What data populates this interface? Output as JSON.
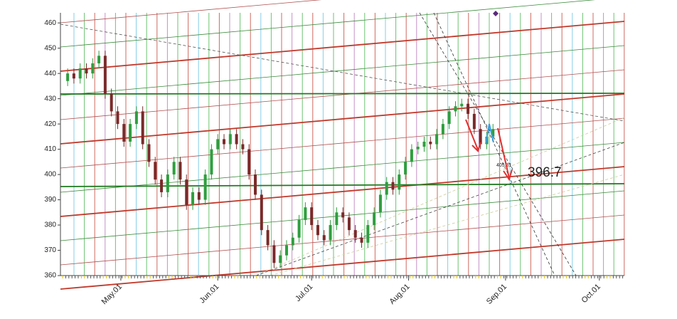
{
  "chart_data": {
    "type": "candlestick",
    "x": [
      13,
      15,
      17,
      19,
      21,
      23,
      25,
      27,
      29,
      31,
      33,
      35,
      37,
      39,
      41,
      43,
      45,
      47,
      49,
      51,
      53,
      55,
      57,
      59,
      61,
      63,
      65,
      67,
      69,
      71,
      73,
      75,
      77,
      79,
      81,
      83,
      85,
      87,
      89,
      91,
      93,
      95,
      97,
      99,
      101,
      103,
      105,
      107,
      109,
      111,
      113,
      115,
      117,
      119,
      121,
      123,
      125,
      127,
      129,
      131,
      133,
      135,
      137,
      139,
      141,
      143,
      145,
      147,
      149
    ],
    "open": [
      437,
      440,
      438,
      442,
      440,
      444,
      447,
      432,
      425,
      420,
      413,
      420,
      425,
      412,
      405,
      398,
      393,
      400,
      405,
      398,
      388,
      393,
      390,
      400,
      410,
      414,
      412,
      416,
      412,
      410,
      400,
      392,
      378,
      372,
      365,
      368,
      372,
      375,
      382,
      387,
      380,
      376,
      374,
      380,
      385,
      383,
      378,
      375,
      373,
      380,
      385,
      392,
      397,
      394,
      400,
      405,
      410,
      411,
      413,
      412,
      416,
      420,
      425,
      427,
      428,
      424,
      418,
      412,
      415
    ],
    "high": [
      442,
      442,
      444,
      444,
      446,
      449,
      449,
      434,
      427,
      422,
      422,
      427,
      427,
      414,
      407,
      400,
      402,
      407,
      407,
      400,
      395,
      395,
      402,
      412,
      416,
      416,
      418,
      418,
      414,
      412,
      402,
      394,
      380,
      374,
      370,
      374,
      377,
      384,
      389,
      389,
      382,
      378,
      382,
      387,
      387,
      385,
      380,
      377,
      382,
      387,
      394,
      399,
      399,
      402,
      407,
      412,
      413,
      415,
      415,
      418,
      422,
      427,
      429,
      430,
      430,
      426,
      420,
      417,
      420
    ],
    "low": [
      435,
      436,
      436,
      438,
      438,
      442,
      430,
      423,
      418,
      411,
      411,
      418,
      410,
      403,
      396,
      391,
      391,
      398,
      396,
      386,
      386,
      388,
      388,
      398,
      408,
      410,
      410,
      410,
      408,
      398,
      390,
      376,
      370,
      363,
      363,
      366,
      370,
      373,
      380,
      378,
      374,
      372,
      372,
      378,
      381,
      376,
      373,
      371,
      371,
      378,
      383,
      390,
      392,
      392,
      398,
      403,
      408,
      409,
      410,
      410,
      414,
      418,
      423,
      425,
      422,
      416,
      410,
      410,
      413
    ],
    "close": [
      440,
      438,
      442,
      440,
      444,
      447,
      432,
      425,
      420,
      413,
      420,
      425,
      412,
      405,
      398,
      393,
      400,
      405,
      398,
      388,
      393,
      390,
      400,
      410,
      414,
      412,
      416,
      412,
      410,
      400,
      392,
      378,
      372,
      365,
      368,
      372,
      375,
      382,
      387,
      380,
      376,
      374,
      380,
      385,
      383,
      378,
      375,
      373,
      380,
      385,
      392,
      397,
      394,
      400,
      405,
      410,
      411,
      413,
      412,
      416,
      420,
      425,
      427,
      428,
      424,
      418,
      412,
      415,
      418
    ],
    "up_color": "#2e9e3e",
    "down_color": "#7a2a2a",
    "xlim": [
      10.7,
      191
    ],
    "xticks": [
      {
        "value": 30,
        "label": "May.01"
      },
      {
        "value": 61,
        "label": "Jun.01"
      },
      {
        "value": 91,
        "label": "Jul.01"
      },
      {
        "value": 122,
        "label": "Aug.01"
      },
      {
        "value": 153,
        "label": "Sep.01"
      },
      {
        "value": 183,
        "label": "Oct.01"
      }
    ],
    "ylim": [
      360,
      464
    ],
    "yticks": [
      360,
      370,
      380,
      390,
      400,
      410,
      420,
      430,
      440,
      450,
      460
    ],
    "annotations": [
      "396.7",
      "405.31"
    ]
  }
}
